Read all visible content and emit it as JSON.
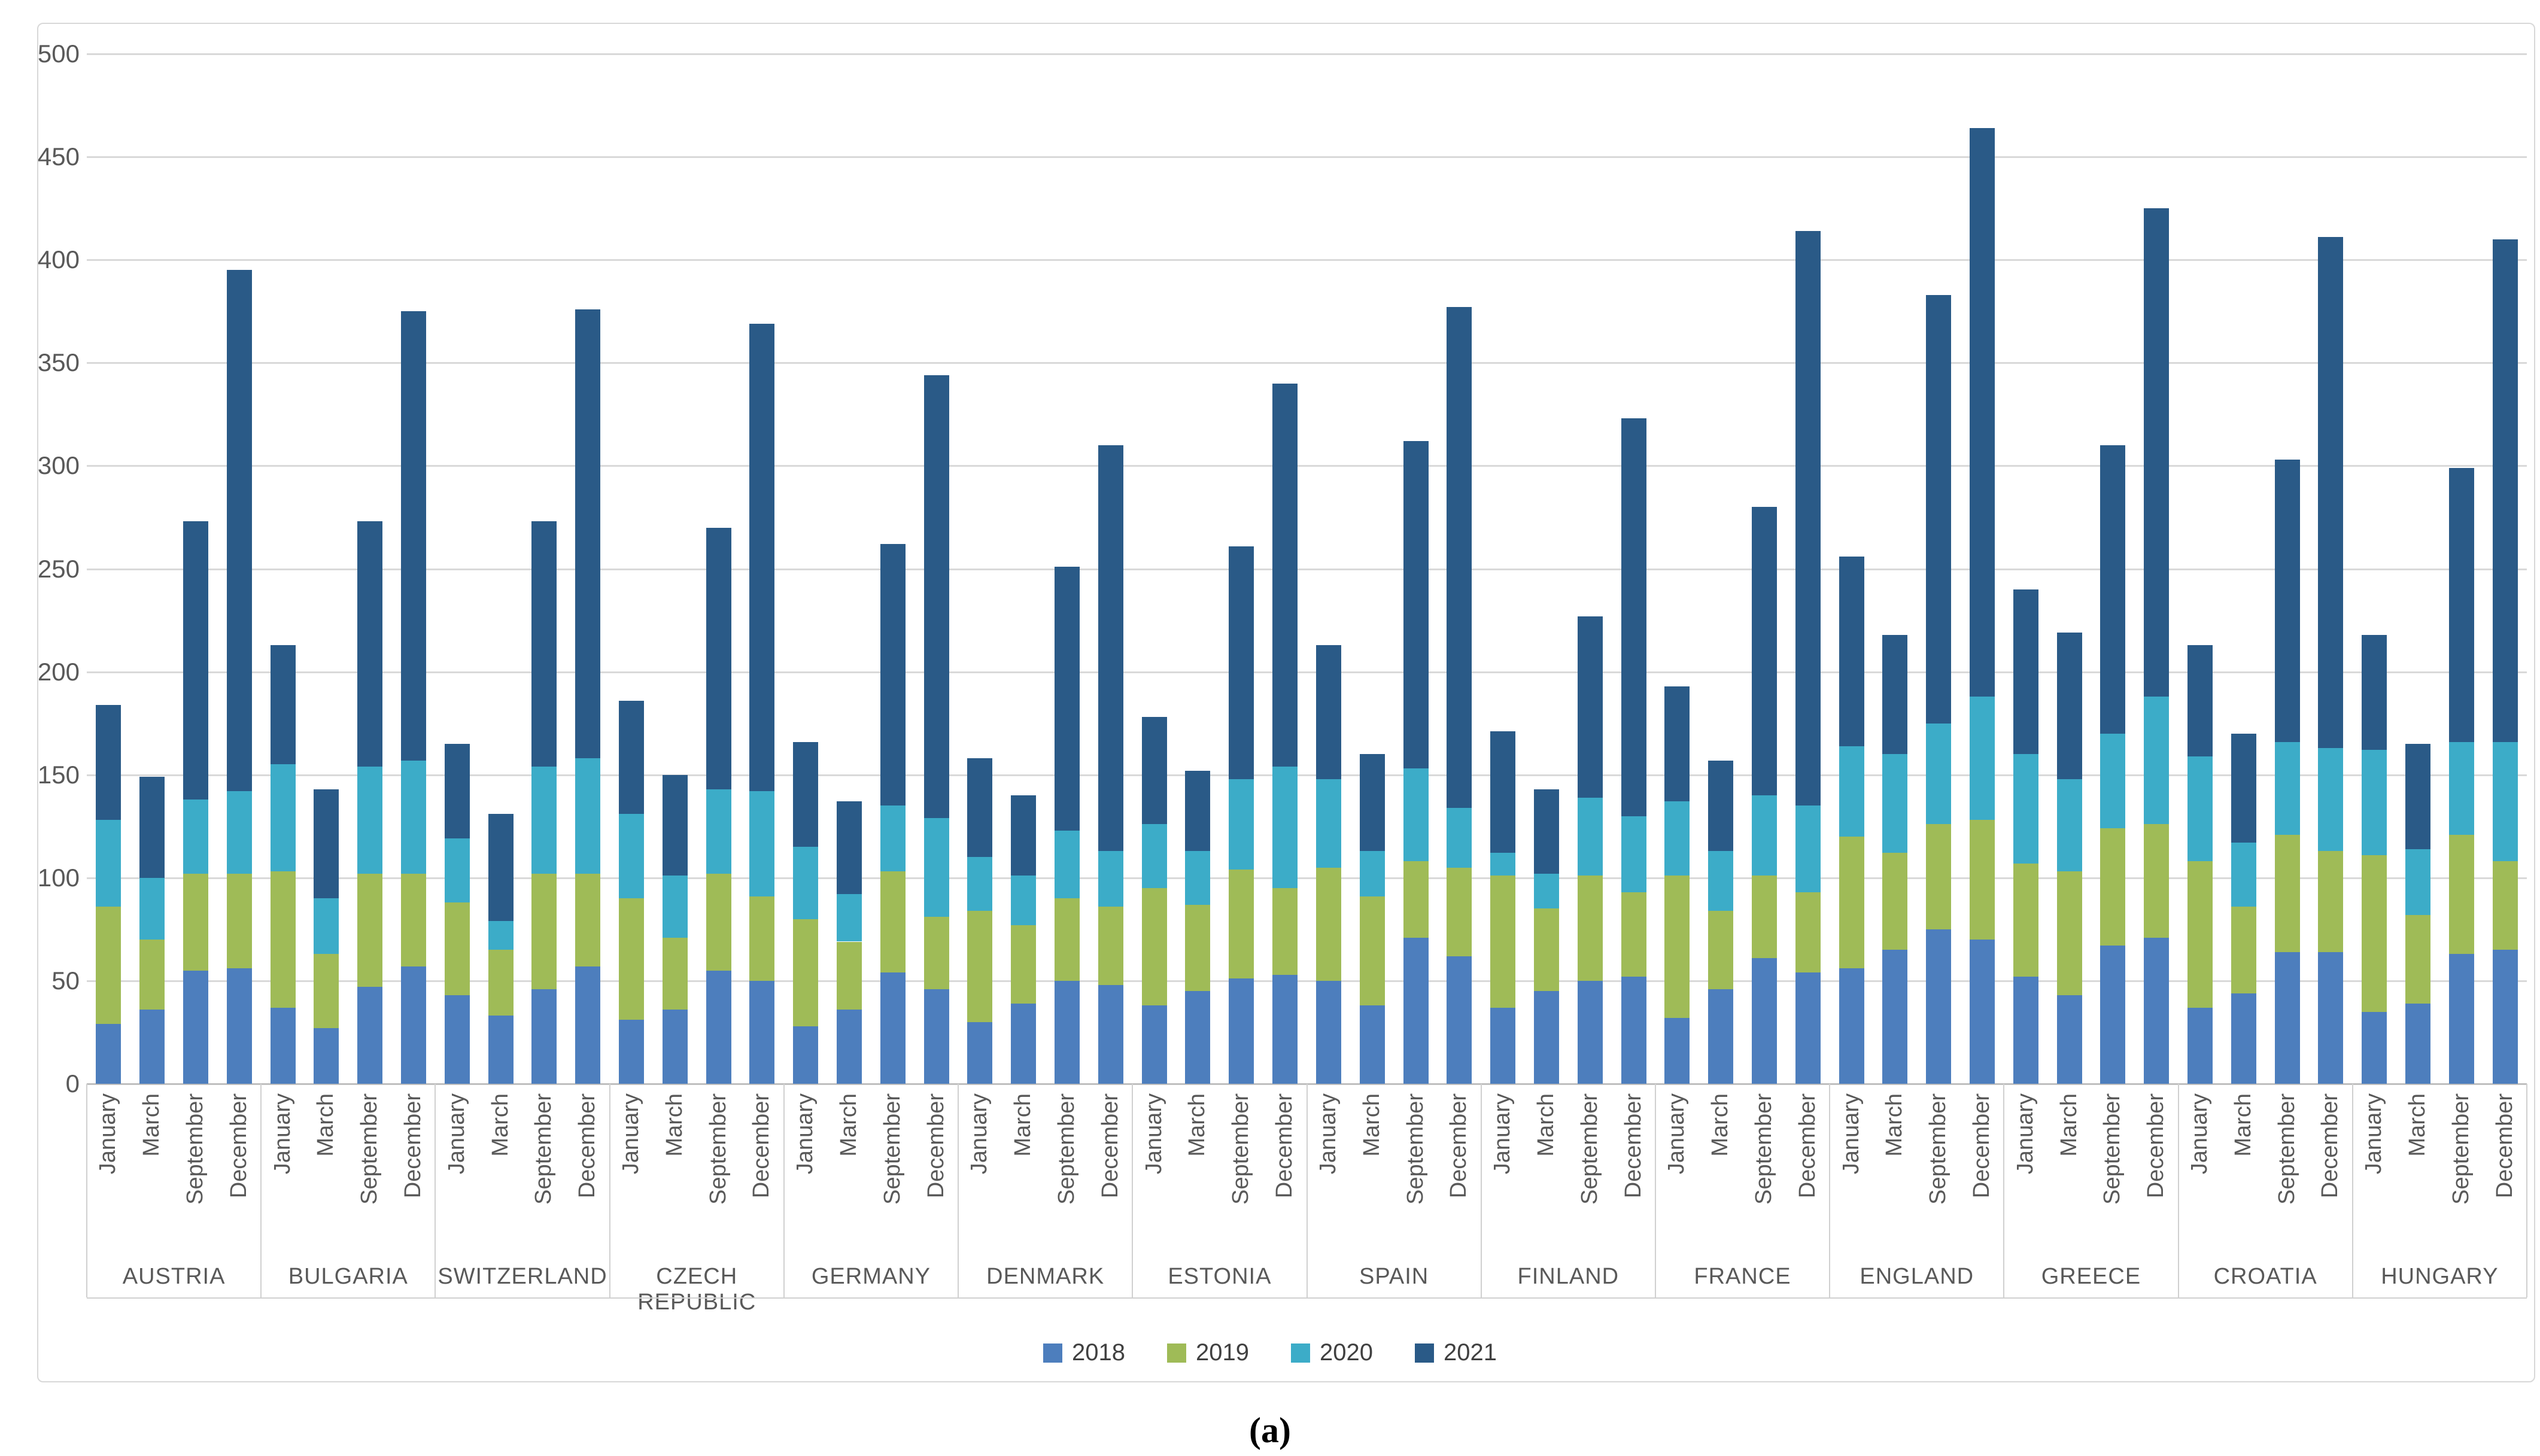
{
  "caption": "(a)",
  "chart_data": {
    "type": "bar",
    "stacked": true,
    "title": "",
    "xlabel": "",
    "ylabel": "",
    "ylim": [
      0,
      500
    ],
    "grid": true,
    "legend_position": "bottom",
    "yticks": [
      0,
      50,
      100,
      150,
      200,
      250,
      300,
      350,
      400,
      450,
      500
    ],
    "months": [
      "January",
      "March",
      "September",
      "December"
    ],
    "series_names": [
      "2018",
      "2019",
      "2020",
      "2021"
    ],
    "colors": {
      "2018": "#4d7ebd",
      "2019": "#9fbb57",
      "2020": "#3cacc8",
      "2021": "#2a5a87"
    },
    "countries": [
      {
        "name": "AUSTRIA",
        "values": [
          [
            29,
            57,
            42,
            56
          ],
          [
            36,
            34,
            30,
            49
          ],
          [
            55,
            47,
            36,
            135
          ],
          [
            56,
            46,
            40,
            253
          ]
        ]
      },
      {
        "name": "BULGARIA",
        "values": [
          [
            37,
            66,
            52,
            58
          ],
          [
            27,
            36,
            27,
            53
          ],
          [
            47,
            55,
            52,
            119
          ],
          [
            57,
            45,
            55,
            218
          ]
        ]
      },
      {
        "name": "SWITZERLAND",
        "values": [
          [
            43,
            45,
            31,
            46
          ],
          [
            33,
            32,
            14,
            52
          ],
          [
            46,
            56,
            52,
            119
          ],
          [
            57,
            45,
            56,
            218
          ]
        ]
      },
      {
        "name": "CZECH REPUBLIC",
        "values": [
          [
            31,
            59,
            41,
            55
          ],
          [
            36,
            35,
            30,
            49
          ],
          [
            55,
            47,
            41,
            127
          ],
          [
            50,
            41,
            51,
            227
          ]
        ]
      },
      {
        "name": "GERMANY",
        "values": [
          [
            28,
            52,
            35,
            51
          ],
          [
            36,
            33,
            23,
            45
          ],
          [
            54,
            49,
            32,
            127
          ],
          [
            46,
            35,
            48,
            215
          ]
        ]
      },
      {
        "name": "DENMARK",
        "values": [
          [
            30,
            54,
            26,
            48
          ],
          [
            39,
            38,
            24,
            39
          ],
          [
            50,
            40,
            33,
            128
          ],
          [
            48,
            38,
            27,
            197
          ]
        ]
      },
      {
        "name": "ESTONIA",
        "values": [
          [
            38,
            57,
            31,
            52
          ],
          [
            45,
            42,
            26,
            39
          ],
          [
            51,
            53,
            44,
            113
          ],
          [
            53,
            42,
            59,
            186
          ]
        ]
      },
      {
        "name": "SPAIN",
        "values": [
          [
            50,
            55,
            43,
            65
          ],
          [
            38,
            53,
            22,
            47
          ],
          [
            71,
            37,
            45,
            159
          ],
          [
            62,
            43,
            29,
            243
          ]
        ]
      },
      {
        "name": "FINLAND",
        "values": [
          [
            37,
            64,
            11,
            59
          ],
          [
            45,
            40,
            17,
            41
          ],
          [
            50,
            51,
            38,
            88
          ],
          [
            52,
            41,
            37,
            193
          ]
        ]
      },
      {
        "name": "FRANCE",
        "values": [
          [
            32,
            69,
            36,
            56
          ],
          [
            46,
            38,
            29,
            44
          ],
          [
            61,
            40,
            39,
            140
          ],
          [
            54,
            39,
            42,
            279
          ]
        ]
      },
      {
        "name": "ENGLAND",
        "values": [
          [
            56,
            64,
            44,
            92
          ],
          [
            65,
            47,
            48,
            58
          ],
          [
            75,
            51,
            49,
            208
          ],
          [
            70,
            58,
            60,
            276
          ]
        ]
      },
      {
        "name": "GREECE",
        "values": [
          [
            52,
            55,
            53,
            80
          ],
          [
            43,
            60,
            45,
            71
          ],
          [
            67,
            57,
            46,
            140
          ],
          [
            71,
            55,
            62,
            237
          ]
        ]
      },
      {
        "name": "CROATIA",
        "values": [
          [
            37,
            71,
            51,
            54
          ],
          [
            44,
            42,
            31,
            53
          ],
          [
            64,
            57,
            45,
            137
          ],
          [
            64,
            49,
            50,
            248
          ]
        ]
      },
      {
        "name": "HUNGARY",
        "values": [
          [
            35,
            76,
            51,
            56
          ],
          [
            39,
            43,
            32,
            51
          ],
          [
            63,
            58,
            45,
            133
          ],
          [
            65,
            43,
            58,
            244
          ]
        ]
      }
    ]
  }
}
